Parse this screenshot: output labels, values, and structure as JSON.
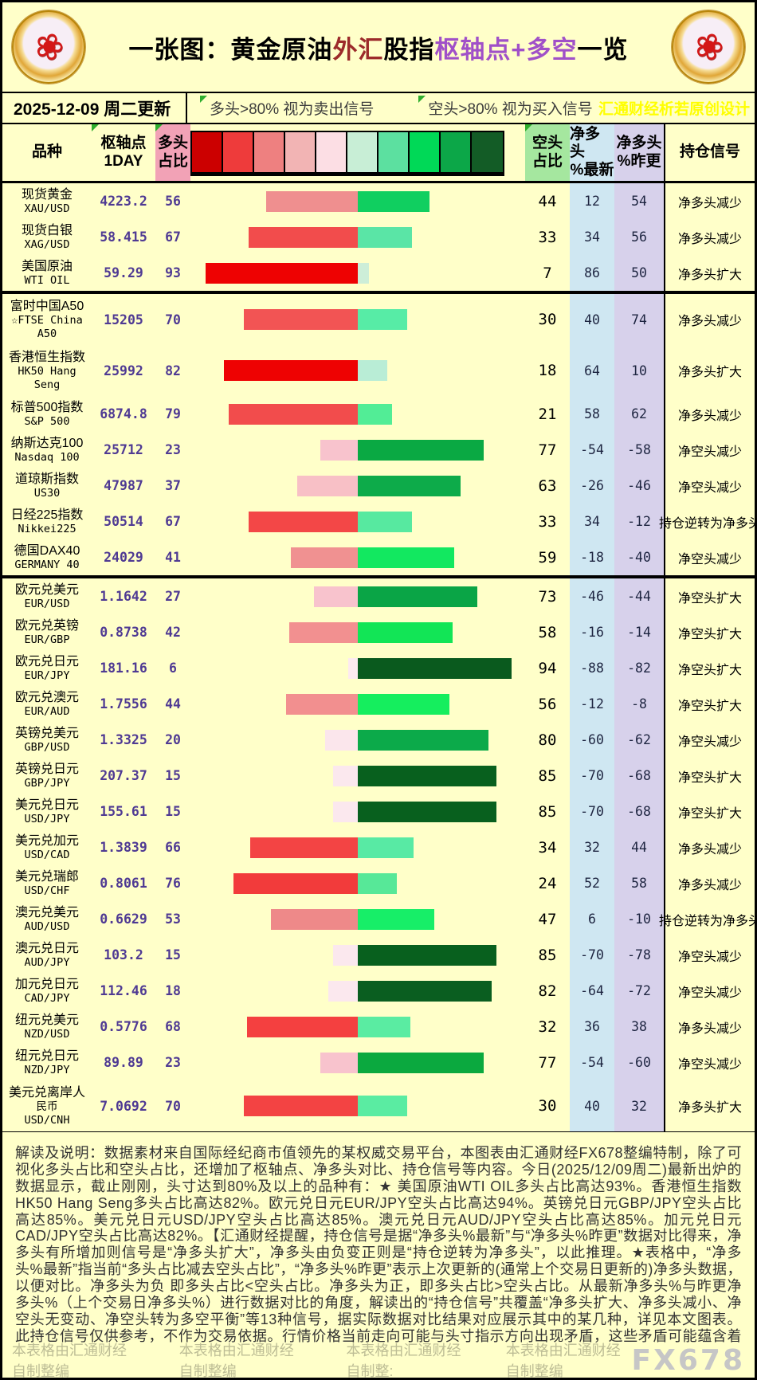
{
  "header": {
    "title_segments": [
      {
        "text": "一张图：黄金原油",
        "color": "#000000"
      },
      {
        "text": "外汇",
        "color": "#9c2b2b"
      },
      {
        "text": "股指",
        "color": "#000000"
      },
      {
        "text": "枢轴点+多空",
        "color": "#a050c8"
      },
      {
        "text": "一览",
        "color": "#000000"
      }
    ],
    "logo_glyph": "❀"
  },
  "update_bar": {
    "date_text": "2025-12-09 周二更新",
    "legend_long": "多头>80% 视为卖出信号",
    "legend_short": "空头>80% 视为买入信号",
    "credit": "汇通财经析若原创设计"
  },
  "table": {
    "headers": {
      "variety": "品种",
      "pivot1": "枢轴点",
      "pivot2": "1DAY",
      "long1": "多头",
      "long2": "占比",
      "short1": "空头",
      "short2": "占比",
      "latest1": "净多头",
      "latest2": "%最新",
      "prev1": "净多头",
      "prev2": "%昨更",
      "signal": "持仓信号"
    },
    "scale_colors": [
      "#cc0000",
      "#ee3b3b",
      "#ee8080",
      "#f2b4b4",
      "#fcdee4",
      "#c8eed6",
      "#5ce0a0",
      "#00d957",
      "#0ca748",
      "#135c26"
    ],
    "rows": [
      {
        "names": [
          "现货黄金",
          "XAU/USD"
        ],
        "pivot": "4223.2",
        "long": 56,
        "short": 44,
        "latest": "12",
        "prev": "54",
        "signal": "净多头减少",
        "lc": "#ef8f8f",
        "sc": "#10cf60"
      },
      {
        "names": [
          "现货白银",
          "XAG/USD"
        ],
        "pivot": "58.415",
        "long": 67,
        "short": 33,
        "latest": "34",
        "prev": "56",
        "signal": "净多头减少",
        "lc": "#f24c4c",
        "sc": "#5ae5a6"
      },
      {
        "names": [
          "美国原油",
          "WTI OIL"
        ],
        "pivot": "59.29",
        "long": 93,
        "short": 7,
        "latest": "86",
        "prev": "50",
        "signal": "净多头扩大",
        "lc": "#ee0202",
        "sc": "#cdeed8",
        "divider_after": true
      },
      {
        "names": [
          "富时中国A50",
          "☆FTSE China",
          "A50"
        ],
        "pivot": "15205",
        "long": 70,
        "short": 30,
        "latest": "40",
        "prev": "74",
        "signal": "净多头减少",
        "lc": "#f25454",
        "sc": "#57eca6",
        "tall": true
      },
      {
        "names": [
          "香港恒生指数",
          "HK50 Hang",
          "Seng"
        ],
        "pivot": "25992",
        "long": 82,
        "short": 18,
        "latest": "64",
        "prev": "10",
        "signal": "净多头扩大",
        "lc": "#ee0202",
        "sc": "#b9edd6",
        "tall": true
      },
      {
        "names": [
          "标普500指数",
          "S&P 500"
        ],
        "pivot": "6874.8",
        "long": 79,
        "short": 21,
        "latest": "58",
        "prev": "62",
        "signal": "净多头减少",
        "lc": "#f24c4c",
        "sc": "#52ed96"
      },
      {
        "names": [
          "纳斯达克100",
          "Nasdaq 100"
        ],
        "pivot": "25712",
        "long": 23,
        "short": 77,
        "latest": "-54",
        "prev": "-58",
        "signal": "净空头减少",
        "lc": "#f8c3cd",
        "sc": "#0aa943"
      },
      {
        "names": [
          "道琼斯指数",
          "US30"
        ],
        "pivot": "47987",
        "long": 37,
        "short": 63,
        "latest": "-26",
        "prev": "-46",
        "signal": "净空头减少",
        "lc": "#f8c0c6",
        "sc": "#0dab4a"
      },
      {
        "names": [
          "日经225指数",
          "Nikkei225"
        ],
        "pivot": "50514",
        "long": 67,
        "short": 33,
        "latest": "34",
        "prev": "-12",
        "signal": "持仓逆转为净多头",
        "lc": "#f34747",
        "sc": "#57e9a0"
      },
      {
        "names": [
          "德国DAX40",
          "GERMANY 40"
        ],
        "pivot": "24029",
        "long": 41,
        "short": 59,
        "latest": "-18",
        "prev": "-40",
        "signal": "净空头减少",
        "lc": "#f09191",
        "sc": "#12e860",
        "divider_after": true
      },
      {
        "names": [
          "欧元兑美元",
          "EUR/USD"
        ],
        "pivot": "1.1642",
        "long": 27,
        "short": 73,
        "latest": "-46",
        "prev": "-44",
        "signal": "净空头扩大",
        "lc": "#f8c3cd",
        "sc": "#0aa546"
      },
      {
        "names": [
          "欧元兑英镑",
          "EUR/GBP"
        ],
        "pivot": "0.8738",
        "long": 42,
        "short": 58,
        "latest": "-16",
        "prev": "-14",
        "signal": "净空头扩大",
        "lc": "#f29090",
        "sc": "#12e556"
      },
      {
        "names": [
          "欧元兑日元",
          "EUR/JPY"
        ],
        "pivot": "181.16",
        "long": 6,
        "short": 94,
        "latest": "-88",
        "prev": "-82",
        "signal": "净空头扩大",
        "lc": "#fdeaf0",
        "sc": "#0a5a1e"
      },
      {
        "names": [
          "欧元兑澳元",
          "EUR/AUD"
        ],
        "pivot": "1.7556",
        "long": 44,
        "short": 56,
        "latest": "-12",
        "prev": "-8",
        "signal": "净空头扩大",
        "lc": "#f28f8f",
        "sc": "#15ee5e"
      },
      {
        "names": [
          "英镑兑美元",
          "GBP/USD"
        ],
        "pivot": "1.3325",
        "long": 20,
        "short": 80,
        "latest": "-60",
        "prev": "-62",
        "signal": "净空头减少",
        "lc": "#fbe6ec",
        "sc": "#0caa4a"
      },
      {
        "names": [
          "英镑兑日元",
          "GBP/JPY"
        ],
        "pivot": "207.37",
        "long": 15,
        "short": 85,
        "latest": "-70",
        "prev": "-68",
        "signal": "净空头扩大",
        "lc": "#fbe8ee",
        "sc": "#08601e"
      },
      {
        "names": [
          "美元兑日元",
          "USD/JPY"
        ],
        "pivot": "155.61",
        "long": 15,
        "short": 85,
        "latest": "-70",
        "prev": "-68",
        "signal": "净空头扩大",
        "lc": "#fbe8ee",
        "sc": "#08601e"
      },
      {
        "names": [
          "美元兑加元",
          "USD/CAD"
        ],
        "pivot": "1.3839",
        "long": 66,
        "short": 34,
        "latest": "32",
        "prev": "44",
        "signal": "净多头减少",
        "lc": "#f34444",
        "sc": "#58eaa4"
      },
      {
        "names": [
          "美元兑瑞郎",
          "USD/CHF"
        ],
        "pivot": "0.8061",
        "long": 76,
        "short": 24,
        "latest": "52",
        "prev": "58",
        "signal": "净多头减少",
        "lc": "#f23b3b",
        "sc": "#57e898"
      },
      {
        "names": [
          "澳元兑美元",
          "AUD/USD"
        ],
        "pivot": "0.6629",
        "long": 53,
        "short": 47,
        "latest": "6",
        "prev": "-10",
        "signal": "持仓逆转为净多头",
        "lc": "#ee8989",
        "sc": "#17ee68"
      },
      {
        "names": [
          "澳元兑日元",
          "AUD/JPY"
        ],
        "pivot": "103.2",
        "long": 15,
        "short": 85,
        "latest": "-70",
        "prev": "-78",
        "signal": "净空头减少",
        "lc": "#fbe8ee",
        "sc": "#08601e"
      },
      {
        "names": [
          "加元兑日元",
          "CAD/JPY"
        ],
        "pivot": "112.46",
        "long": 18,
        "short": 82,
        "latest": "-64",
        "prev": "-72",
        "signal": "净空头减少",
        "lc": "#fbe8ee",
        "sc": "#0a5e20"
      },
      {
        "names": [
          "纽元兑美元",
          "NZD/USD"
        ],
        "pivot": "0.5776",
        "long": 68,
        "short": 32,
        "latest": "36",
        "prev": "38",
        "signal": "净多头减少",
        "lc": "#f44040",
        "sc": "#5aeca2"
      },
      {
        "names": [
          "纽元兑日元",
          "NZD/JPY"
        ],
        "pivot": "89.89",
        "long": 23,
        "short": 77,
        "latest": "-54",
        "prev": "-60",
        "signal": "净空头减少",
        "lc": "#f8c3cd",
        "sc": "#0ba93f"
      },
      {
        "names": [
          "美元兑离岸人",
          "民币",
          "USD/CNH"
        ],
        "pivot": "7.0692",
        "long": 70,
        "short": 30,
        "latest": "40",
        "prev": "32",
        "signal": "净多头扩大",
        "lc": "#f34343",
        "sc": "#5aeca2",
        "tall": true
      }
    ]
  },
  "chart_data": {
    "type": "bar",
    "subtype": "diverging-horizontal",
    "title": "一张图：黄金原油外汇股指枢轴点+多空一览",
    "categories": [
      "XAU/USD",
      "XAG/USD",
      "WTI OIL",
      "FTSE China A50",
      "HK50 Hang Seng",
      "S&P 500",
      "Nasdaq 100",
      "US30",
      "Nikkei225",
      "GERMANY 40",
      "EUR/USD",
      "EUR/GBP",
      "EUR/JPY",
      "EUR/AUD",
      "GBP/USD",
      "GBP/JPY",
      "USD/JPY",
      "USD/CAD",
      "USD/CHF",
      "AUD/USD",
      "AUD/JPY",
      "CAD/JPY",
      "NZD/USD",
      "NZD/JPY",
      "USD/CNH"
    ],
    "series": [
      {
        "name": "枢轴点1DAY",
        "values": [
          4223.2,
          58.415,
          59.29,
          15205,
          25992,
          6874.8,
          25712,
          47987,
          50514,
          24029,
          1.1642,
          0.8738,
          181.16,
          1.7556,
          1.3325,
          207.37,
          155.61,
          1.3839,
          0.8061,
          0.6629,
          103.2,
          112.46,
          0.5776,
          89.89,
          7.0692
        ]
      },
      {
        "name": "多头占比",
        "values": [
          56,
          67,
          93,
          70,
          82,
          79,
          23,
          37,
          67,
          41,
          27,
          42,
          6,
          44,
          20,
          15,
          15,
          66,
          76,
          53,
          15,
          18,
          68,
          23,
          70
        ]
      },
      {
        "name": "空头占比",
        "values": [
          44,
          33,
          7,
          30,
          18,
          21,
          77,
          63,
          33,
          59,
          73,
          58,
          94,
          56,
          80,
          85,
          85,
          34,
          24,
          47,
          85,
          82,
          32,
          77,
          30
        ]
      },
      {
        "name": "净多头%最新",
        "values": [
          12,
          34,
          86,
          40,
          64,
          58,
          -54,
          -26,
          34,
          -18,
          -46,
          -16,
          -88,
          -12,
          -60,
          -70,
          -70,
          32,
          52,
          6,
          -70,
          -64,
          36,
          -54,
          40
        ]
      },
      {
        "name": "净多头%昨更",
        "values": [
          54,
          56,
          50,
          74,
          10,
          62,
          -58,
          -46,
          -12,
          -40,
          -44,
          -14,
          -82,
          -8,
          -62,
          -68,
          -68,
          44,
          58,
          -10,
          -78,
          -72,
          38,
          -60,
          32
        ]
      }
    ],
    "xlim": [
      -100,
      100
    ],
    "grid": false,
    "legend_position": "none"
  },
  "footer": {
    "note": "解读及说明：数据素材来自国际经纪商市值领先的某权威交易平台，本图表由汇通财经FX678整编特制，除了可视化多头占比和空头占比，还增加了枢轴点、净多头对比、持仓信号等内容。今日(2025/12/09周二)最新出炉的数据显示，截止刚刚，头寸达到80%及以上的品种有：★ 美国原油WTI OIL多头占比高达93%。香港恒生指数HK50 Hang Seng多头占比高达82%。欧元兑日元EUR/JPY空头占比高达94%。英镑兑日元GBP/JPY空头占比高达85%。美元兑日元USD/JPY空头占比高达85%。澳元兑日元AUD/JPY空头占比高达85%。加元兑日元CAD/JPY空头占比高达82%。【汇通财经提醒，持仓信号是据“净多头%最新”与“净多头%昨更”数据对比得来，净多头有所增加则信号是“净多头扩大”，净多头由负变正则是“持仓逆转为净多头”，以此推理。★表格中，“净多头%最新”指当前“多头占比减去空头占比”，“净多头%昨更”表示上次更新的(通常上个交易日更新的)净多头数据，以便对比。净多头为负 即多头占比<空头占比。净多头为正，即多头占比>空头占比。从最新净多头%与昨更净多头%（上个交易日净多头%）进行数据对比的角度，解读出的“持仓信号”共覆盖“净多头扩大、净多头减小、净空头无变动、净空头转为多空平衡”等13种信号，据实际数据对比结果对应展示其中的某几种，详见本文图表。此持仓信号仅供参考，不作为交易依据。行情价格当前走向可能与头寸指示方向出现矛盾，这些矛盾可能蕴含着某种潜在机会，同时，后续价格走势受各方面复杂影响，交易者需自行做决断。】(更新时间指汇通财经的当天更新日期，统计的是隔天交易日的数据，比如本周三上午统计的是截止本周二全球交易日结束时的数据(北京时间周三六七点)。该数据比CFTC每周一次更为及时，但样本数据量逊于CFTC持仓报告。)",
    "credits": [
      "本表格由汇通财经自制整编",
      "本表格由汇通财经自制整编",
      "本表格由汇通财经自制整:",
      "本表格由汇通财经自制整编"
    ],
    "watermark": "FX678"
  }
}
